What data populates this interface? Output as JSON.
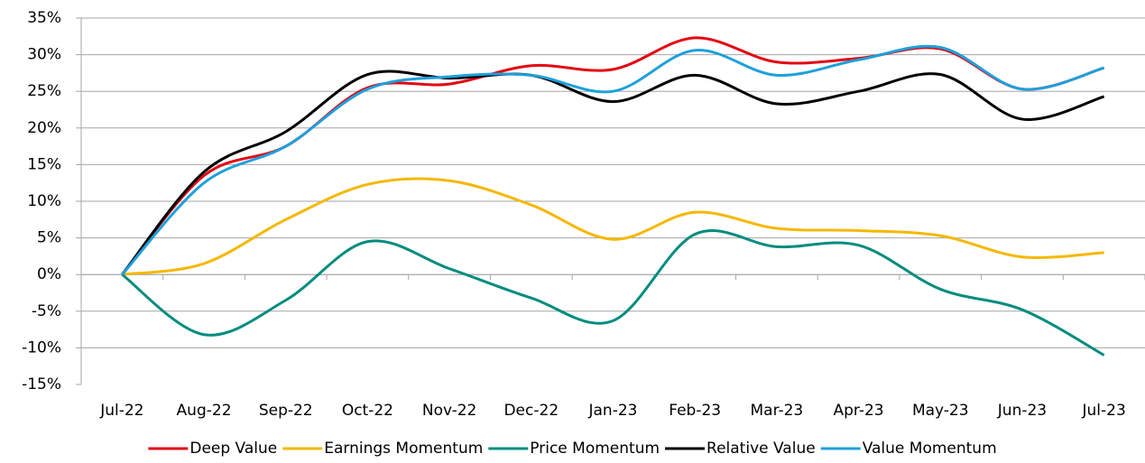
{
  "chart_data": {
    "type": "line",
    "categories": [
      "Jul-22",
      "Aug-22",
      "Sep-22",
      "Oct-22",
      "Nov-22",
      "Dec-22",
      "Jan-23",
      "Feb-23",
      "Mar-23",
      "Apr-23",
      "May-23",
      "Jun-23",
      "Jul-23"
    ],
    "series": [
      {
        "name": "Deep Value",
        "color": "#e30613",
        "values": [
          0,
          13.5,
          17.5,
          25.5,
          26,
          28.5,
          28,
          32.3,
          29,
          29.5,
          30.8,
          25.3,
          28.2
        ]
      },
      {
        "name": "Earnings Momentum",
        "color": "#f5b800",
        "values": [
          0,
          1.5,
          7.5,
          12.3,
          12.8,
          9.5,
          4.8,
          8.5,
          6.3,
          6,
          5.3,
          2.4,
          3
        ]
      },
      {
        "name": "Price Momentum",
        "color": "#008c7e",
        "values": [
          0,
          -8.2,
          -3.5,
          4.5,
          0.8,
          -3.2,
          -6.3,
          5.5,
          3.8,
          4,
          -2,
          -4.8,
          -11
        ]
      },
      {
        "name": "Relative Value",
        "color": "#000000",
        "values": [
          0,
          14,
          19.5,
          27.3,
          26.8,
          27.2,
          23.6,
          27.2,
          23.3,
          25,
          27.3,
          21.2,
          24.3
        ]
      },
      {
        "name": "Value Momentum",
        "color": "#1ea0dc",
        "values": [
          0,
          12.5,
          17.5,
          25.3,
          27,
          27.2,
          25,
          30.6,
          27.2,
          29.3,
          31,
          25.3,
          28.2
        ]
      }
    ],
    "ylim": [
      -15,
      35
    ],
    "yticks": [
      {
        "value": -15,
        "label": "-15%"
      },
      {
        "value": -10,
        "label": "-10%"
      },
      {
        "value": -5,
        "label": "-5%"
      },
      {
        "value": 0,
        "label": "0%"
      },
      {
        "value": 5,
        "label": "5%"
      },
      {
        "value": 10,
        "label": "10%"
      },
      {
        "value": 15,
        "label": "15%"
      },
      {
        "value": 20,
        "label": "20%"
      },
      {
        "value": 25,
        "label": "25%"
      },
      {
        "value": 30,
        "label": "30%"
      },
      {
        "value": 35,
        "label": "35%"
      }
    ],
    "grid": true,
    "legend": "bottom"
  }
}
